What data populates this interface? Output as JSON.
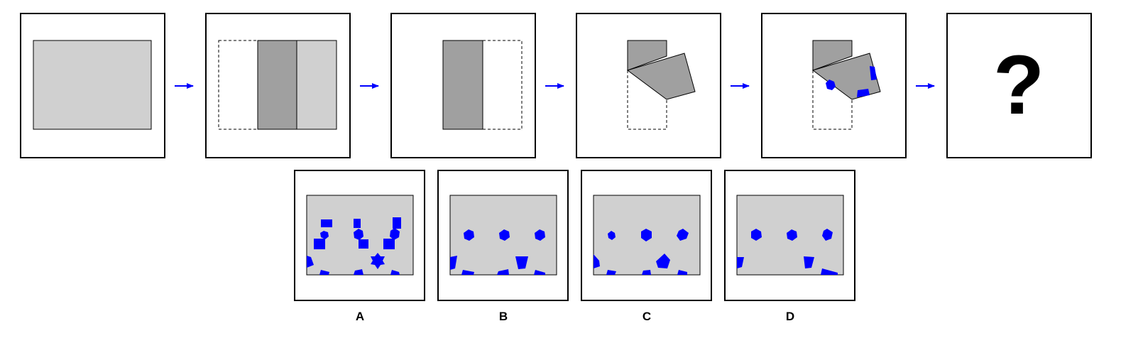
{
  "colors": {
    "paper": "#d0d0d0",
    "folded": "#a0a0a0",
    "hole": "#0000ff",
    "arrow": "#0000ff",
    "frame": "#000000"
  },
  "question_mark": "?",
  "options": [
    {
      "label": "A"
    },
    {
      "label": "B"
    },
    {
      "label": "C"
    },
    {
      "label": "D"
    }
  ]
}
